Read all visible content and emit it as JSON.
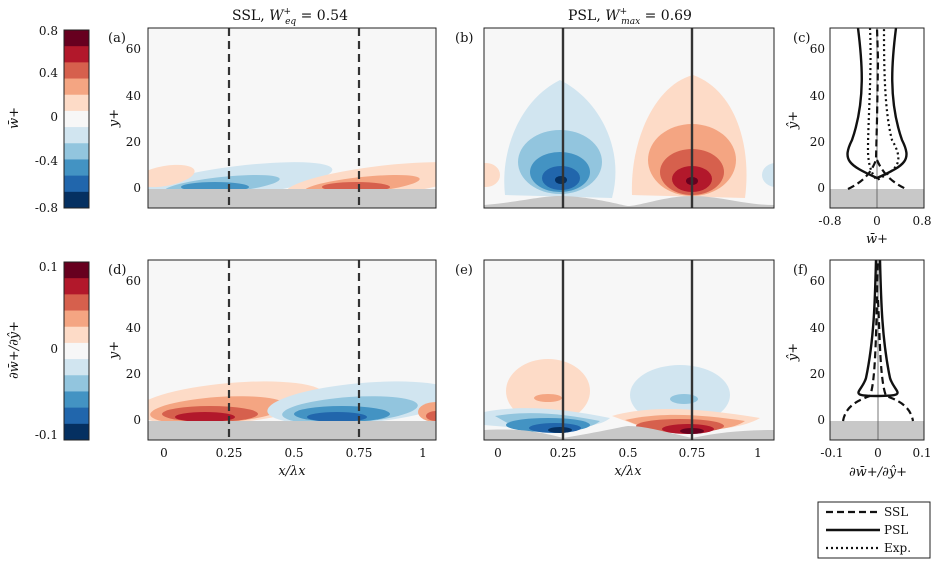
{
  "chart_data": [
    {
      "type": "heatmap",
      "panel": "a",
      "title": "SSL, W+eq = 0.54",
      "title_main": "SSL,",
      "title_var": "W",
      "title_sup": "+",
      "title_sub": "eq",
      "title_val": " = 0.54",
      "ylabel": "y+",
      "xlabel": "",
      "xlim": [
        -0.05,
        1.05
      ],
      "ylim": [
        -8,
        70
      ],
      "yticks": [
        "0",
        "20",
        "40",
        "60"
      ],
      "xticks": [],
      "vlines": [
        0.25,
        0.75
      ],
      "vline_style": "dashed",
      "wall": "flat"
    },
    {
      "type": "heatmap",
      "panel": "b",
      "title": "PSL, W+max = 0.69",
      "title_main": "PSL,",
      "title_var": "W",
      "title_sup": "+",
      "title_sub": "max",
      "title_val": " = 0.69",
      "xlim": [
        -0.05,
        1.05
      ],
      "ylim": [
        -8,
        70
      ],
      "vlines": [
        0.25,
        0.75
      ],
      "vline_style": "solid",
      "wall": "wavy"
    },
    {
      "type": "line",
      "panel": "c",
      "ylabel": "ŷ+",
      "xlabel": "w̄+",
      "xlim": [
        -0.8,
        0.8
      ],
      "ylim": [
        -8,
        70
      ],
      "xticks": [
        "-0.8",
        "0",
        "0.8"
      ],
      "yticks": [
        "0",
        "20",
        "40",
        "60"
      ],
      "series": [
        {
          "style": "dashed",
          "x": [
            -0.48,
            -0.1,
            0.0,
            0.02,
            0.02,
            0.0,
            0.02,
            0.1,
            0.48
          ],
          "y": [
            0,
            5,
            10,
            20,
            40,
            60,
            70,
            5,
            0
          ]
        },
        {
          "style": "solid"
        },
        {
          "style": "dotted"
        }
      ]
    },
    {
      "type": "heatmap",
      "panel": "d",
      "ylabel": "y+",
      "xlabel": "x/λx",
      "xlim": [
        -0.05,
        1.05
      ],
      "ylim": [
        -8,
        70
      ],
      "xticks": [
        "0",
        "0.25",
        "0.5",
        "0.75",
        "1"
      ],
      "yticks": [
        "0",
        "20",
        "40",
        "60"
      ],
      "vlines": [
        0.25,
        0.75
      ],
      "vline_style": "dashed",
      "wall": "flat"
    },
    {
      "type": "heatmap",
      "panel": "e",
      "xlabel": "x/λx",
      "xlim": [
        -0.05,
        1.05
      ],
      "ylim": [
        -8,
        70
      ],
      "xticks": [
        "0",
        "0.25",
        "0.5",
        "0.75",
        "1"
      ],
      "vlines": [
        0.25,
        0.75
      ],
      "vline_style": "solid",
      "wall": "wavy"
    },
    {
      "type": "line",
      "panel": "f",
      "ylabel": "ŷ+",
      "xlabel": "∂w̄+/∂ŷ+",
      "xlim": [
        -0.1,
        0.1
      ],
      "ylim": [
        -8,
        70
      ],
      "xticks": [
        "-0.1",
        "0",
        "0.1"
      ],
      "yticks": [
        "0",
        "20",
        "40",
        "60"
      ],
      "series": [
        {
          "style": "dashed"
        },
        {
          "style": "solid"
        }
      ]
    }
  ],
  "colorbars": [
    {
      "label": "w̄+",
      "ticks": [
        "0.8",
        "0.4",
        "0",
        "-0.4",
        "-0.8"
      ]
    },
    {
      "label": "∂w̄+/∂ŷ+",
      "ticks": [
        "0.1",
        "0",
        "-0.1"
      ]
    }
  ],
  "colormap": [
    "#67001f",
    "#b2182b",
    "#d6604d",
    "#f4a582",
    "#fddbc7",
    "#f7f7f7",
    "#d1e5f0",
    "#92c5de",
    "#4393c3",
    "#2166ac",
    "#053061"
  ],
  "panel_labels": [
    "(a)",
    "(b)",
    "(c)",
    "(d)",
    "(e)",
    "(f)"
  ],
  "legend": {
    "position": "bottom-right",
    "entries": [
      {
        "label": "SSL",
        "style": "dashed"
      },
      {
        "label": "PSL",
        "style": "solid"
      },
      {
        "label": "Exp.",
        "style": "dotted"
      }
    ]
  },
  "colors": {
    "wall": "#c8c8c8",
    "background": "#f7f7f7",
    "line": "#222222"
  }
}
